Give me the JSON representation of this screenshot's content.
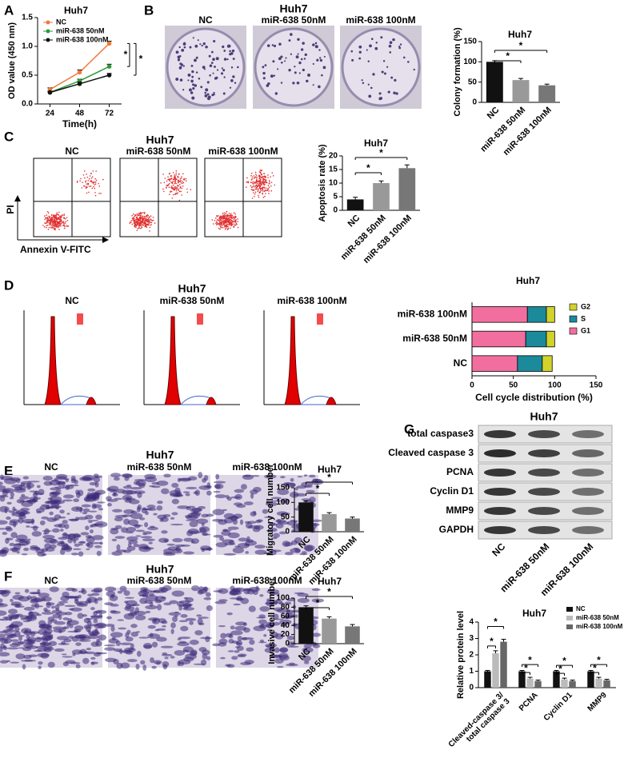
{
  "panel_labels": [
    "A",
    "B",
    "C",
    "D",
    "E",
    "F",
    "G"
  ],
  "images": [
    {
      "title": "Huh7",
      "labels": [
        "NC",
        "miR-638 50nM",
        "miR-638 100nM"
      ]
    },
    {
      "title": "Huh7",
      "labels": [
        "NC",
        "miR-638 50nM",
        "miR-638 100nM"
      ],
      "y_axis": "PI",
      "x_axis": "Annexin V-FITC"
    },
    {
      "title": "Huh7",
      "labels": [
        "NC",
        "miR-638 50nM",
        "miR-638 100nM"
      ]
    },
    {
      "title": "Huh7",
      "labels": [
        "NC",
        "miR-638 50nM",
        "miR-638 100nM"
      ]
    },
    {
      "title": "Huh7",
      "labels": [
        "NC",
        "miR-638 50nM",
        "miR-638 100nM"
      ]
    }
  ],
  "blot": {
    "title": "Huh7",
    "rows": [
      "total caspase3",
      "Cleaved caspase 3",
      "PCNA",
      "Cyclin D1",
      "MMP9",
      "GAPDH"
    ],
    "lanes": [
      "NC",
      "miR-638 50nM",
      "miR-638 100nM"
    ]
  },
  "chart_data": [
    {
      "type": "line",
      "title": "Huh7",
      "xlabel": "Time(h)",
      "ylabel": "OD value (450 nm)",
      "x": [
        24,
        48,
        72
      ],
      "xlim": [
        14,
        82
      ],
      "xticks": [
        24,
        48,
        72
      ],
      "ylim": [
        0,
        1.5
      ],
      "yticks": [
        {
          "value": 0,
          "label": "0.0"
        },
        {
          "value": 0.5,
          "label": "0.5"
        },
        {
          "value": 1,
          "label": "1.0"
        },
        {
          "value": 1.5,
          "label": "1.5"
        }
      ],
      "series": [
        {
          "name": "NC",
          "color": "#f07a3a",
          "values": [
            0.25,
            0.55,
            1.05
          ],
          "errors": [
            0.03,
            0.04,
            0.04
          ]
        },
        {
          "name": "miR-638 50nM",
          "color": "#2e9a3a",
          "values": [
            0.2,
            0.4,
            0.65
          ],
          "errors": [
            0.02,
            0.03,
            0.04
          ]
        },
        {
          "name": "miR-638 100nM",
          "color": "#111111",
          "values": [
            0.2,
            0.35,
            0.5
          ],
          "errors": [
            0.02,
            0.03,
            0.03
          ]
        }
      ],
      "annotations": [
        "*",
        "*"
      ]
    },
    {
      "type": "bar",
      "title": "Huh7",
      "ylabel": "Colony formation (%)",
      "categories": [
        "NC",
        "miR-638 50nM",
        "miR-638 100nM"
      ],
      "values": [
        100,
        55,
        42
      ],
      "errors": [
        3,
        4,
        3
      ],
      "colors": [
        "#111111",
        "#999999",
        "#777777"
      ],
      "ylim": [
        0,
        150
      ],
      "yticks": [
        0,
        50,
        100,
        150
      ],
      "annotations": [
        "*",
        "*"
      ]
    },
    {
      "type": "bar",
      "title": "Huh7",
      "ylabel": "Apoptosis rate (%)",
      "categories": [
        "NC",
        "miR-638 50nM",
        "miR-638 100nM"
      ],
      "values": [
        4,
        10,
        15.5
      ],
      "errors": [
        0.8,
        0.8,
        1.2
      ],
      "colors": [
        "#111111",
        "#999999",
        "#777777"
      ],
      "ylim": [
        0,
        20
      ],
      "yticks": [
        0,
        5,
        10,
        15,
        20
      ],
      "annotations": [
        "*",
        "*"
      ]
    },
    {
      "type": "stacked_hbar",
      "title": "Huh7",
      "xlabel": "Cell cycle distribution (%)",
      "categories": [
        "NC",
        "miR-638 50nM",
        "miR-638 100nM"
      ],
      "series": [
        {
          "name": "G1",
          "color": "#f26e9e",
          "values": [
            55,
            65,
            67
          ]
        },
        {
          "name": "S",
          "color": "#1b8a9b",
          "values": [
            30,
            25,
            23
          ]
        },
        {
          "name": "G2",
          "color": "#d2d22c",
          "values": [
            12,
            10,
            10
          ]
        }
      ],
      "xlim": [
        0,
        150
      ],
      "xticks": [
        0,
        50,
        100,
        150
      ]
    },
    {
      "type": "bar",
      "title": "Huh7",
      "ylabel": "Migratory cell number",
      "categories": [
        "NC",
        "miR-638 50nM",
        "miR-638 100nM"
      ],
      "values": [
        100,
        60,
        45
      ],
      "errors": [
        5,
        5,
        5
      ],
      "colors": [
        "#111111",
        "#999999",
        "#777777"
      ],
      "ylim": [
        0,
        150
      ],
      "yticks": [
        0,
        50,
        100,
        150
      ],
      "annotations": [
        "*",
        "*"
      ]
    },
    {
      "type": "bar",
      "title": "Huh7",
      "ylabel": "Invasive cell number",
      "categories": [
        "NC",
        "miR-638 50nM",
        "miR-638 100nM"
      ],
      "values": [
        80,
        55,
        38
      ],
      "errors": [
        3,
        4,
        4
      ],
      "colors": [
        "#111111",
        "#999999",
        "#777777"
      ],
      "ylim": [
        0,
        100
      ],
      "yticks": [
        0,
        20,
        40,
        60,
        80,
        100
      ],
      "annotations": [
        "*",
        "*"
      ]
    },
    {
      "type": "grouped_bar",
      "title": "Huh7",
      "ylabel": "Relative protein level",
      "categories": [
        "Cleaved-caspase 3/\ntotal caspase 3",
        "PCNA",
        "Cyclin D1",
        "MMP9"
      ],
      "series": [
        {
          "name": "NC",
          "color": "#111111",
          "values": [
            1,
            1,
            1,
            1
          ],
          "errors": [
            0.05,
            0.05,
            0.05,
            0.05
          ]
        },
        {
          "name": "miR-638 50nM",
          "color": "#bbbbbb",
          "values": [
            2.1,
            0.55,
            0.5,
            0.55
          ],
          "errors": [
            0.15,
            0.08,
            0.08,
            0.08
          ]
        },
        {
          "name": "miR-638 100nM",
          "color": "#666666",
          "values": [
            2.8,
            0.4,
            0.4,
            0.45
          ],
          "errors": [
            0.15,
            0.06,
            0.06,
            0.06
          ]
        }
      ],
      "ylim": [
        0,
        4
      ],
      "yticks": [
        0,
        1,
        2,
        3,
        4
      ],
      "annotations": [
        "*",
        "*",
        "*",
        "*",
        "*",
        "*",
        "*",
        "*"
      ]
    }
  ]
}
